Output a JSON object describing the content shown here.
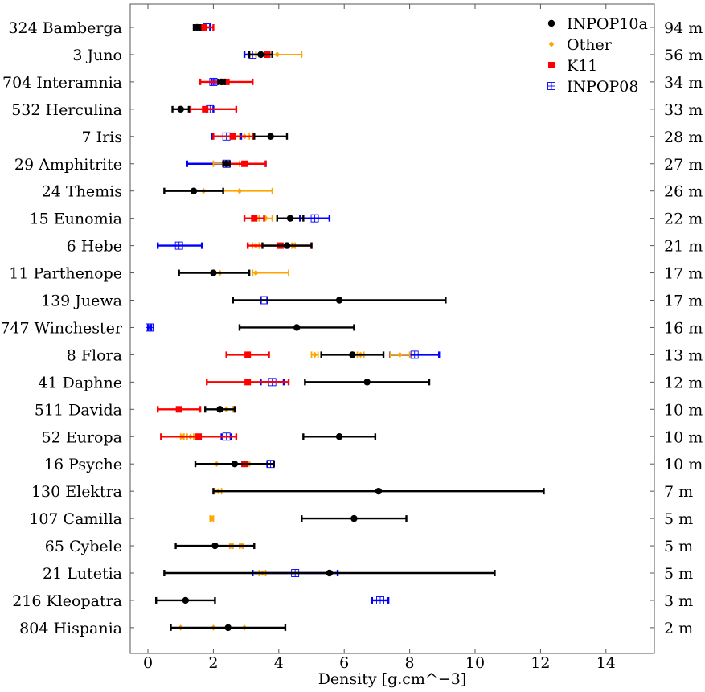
{
  "chart_data": {
    "type": "scatter",
    "xlabel": "Density [g.cm^−3]",
    "xlim": [
      -0.5,
      15.5
    ],
    "xticks": [
      0,
      2,
      4,
      6,
      8,
      10,
      12,
      14
    ],
    "legend_placement": "top-right",
    "grid": false,
    "asteroids": [
      {
        "name": "324 Bamberga",
        "size": "94  m"
      },
      {
        "name": "3 Juno",
        "size": "56  m"
      },
      {
        "name": "704 Interamnia",
        "size": "34  m"
      },
      {
        "name": "532 Herculina",
        "size": "33  m"
      },
      {
        "name": "7 Iris",
        "size": "28  m"
      },
      {
        "name": "29 Amphitrite",
        "size": "27  m"
      },
      {
        "name": "24 Themis",
        "size": "26  m"
      },
      {
        "name": "15 Eunomia",
        "size": "22  m"
      },
      {
        "name": "6 Hebe",
        "size": "21  m"
      },
      {
        "name": "11 Parthenope",
        "size": "17  m"
      },
      {
        "name": "139 Juewa",
        "size": "17  m"
      },
      {
        "name": "747 Winchester",
        "size": "16  m"
      },
      {
        "name": "8 Flora",
        "size": "13  m"
      },
      {
        "name": "41 Daphne",
        "size": "12  m"
      },
      {
        "name": "511 Davida",
        "size": "10  m"
      },
      {
        "name": "52 Europa",
        "size": "10  m"
      },
      {
        "name": "16 Psyche",
        "size": "10  m"
      },
      {
        "name": "130 Elektra",
        "size": "7  m"
      },
      {
        "name": "107 Camilla",
        "size": "5  m"
      },
      {
        "name": "65 Cybele",
        "size": "5  m"
      },
      {
        "name": "21 Lutetia",
        "size": "5  m"
      },
      {
        "name": "216 Kleopatra",
        "size": "3  m"
      },
      {
        "name": "804 Hispania",
        "size": "2  m"
      }
    ],
    "series": [
      {
        "name": "INPOP10a",
        "color": "#000000",
        "marker": "circle",
        "points": [
          {
            "row": 0,
            "x": 1.5,
            "lo": 1.4,
            "hi": 1.6
          },
          {
            "row": 1,
            "x": 3.45,
            "lo": 3.1,
            "hi": 3.8
          },
          {
            "row": 2,
            "x": 2.25,
            "lo": 2.15,
            "hi": 2.35
          },
          {
            "row": 3,
            "x": 1.0,
            "lo": 0.75,
            "hi": 1.25
          },
          {
            "row": 4,
            "x": 3.75,
            "lo": 3.25,
            "hi": 4.25
          },
          {
            "row": 5,
            "x": 2.4,
            "lo": 2.3,
            "hi": 2.5
          },
          {
            "row": 6,
            "x": 1.4,
            "lo": 0.5,
            "hi": 2.3
          },
          {
            "row": 7,
            "x": 4.35,
            "lo": 3.95,
            "hi": 4.75
          },
          {
            "row": 8,
            "x": 4.25,
            "lo": 3.5,
            "hi": 5.0
          },
          {
            "row": 9,
            "x": 2.0,
            "lo": 0.95,
            "hi": 3.1
          },
          {
            "row": 10,
            "x": 5.85,
            "lo": 2.6,
            "hi": 9.1
          },
          {
            "row": 11,
            "x": 4.55,
            "lo": 2.8,
            "hi": 6.3
          },
          {
            "row": 12,
            "x": 6.25,
            "lo": 5.3,
            "hi": 7.2
          },
          {
            "row": 13,
            "x": 6.7,
            "lo": 4.8,
            "hi": 8.6
          },
          {
            "row": 14,
            "x": 2.2,
            "lo": 1.75,
            "hi": 2.65
          },
          {
            "row": 15,
            "x": 5.85,
            "lo": 4.75,
            "hi": 6.95
          },
          {
            "row": 16,
            "x": 2.65,
            "lo": 1.45,
            "hi": 3.85
          },
          {
            "row": 17,
            "x": 7.05,
            "lo": 2.0,
            "hi": 12.1
          },
          {
            "row": 18,
            "x": 6.3,
            "lo": 4.7,
            "hi": 7.9
          },
          {
            "row": 19,
            "x": 2.05,
            "lo": 0.85,
            "hi": 3.25
          },
          {
            "row": 20,
            "x": 5.55,
            "lo": 0.5,
            "hi": 10.6
          },
          {
            "row": 21,
            "x": 1.15,
            "lo": 0.25,
            "hi": 2.05
          },
          {
            "row": 22,
            "x": 2.45,
            "lo": 0.7,
            "hi": 4.2
          }
        ]
      },
      {
        "name": "Other",
        "color": "#ffa500",
        "marker": "diamond",
        "points": [
          {
            "row": 1,
            "x": 3.95,
            "lo": 3.3,
            "hi": 4.7
          },
          {
            "row": 4,
            "x": 2.95,
            "lo": 2.8,
            "hi": 3.1
          },
          {
            "row": 5,
            "x": 2.4,
            "lo": 2.0,
            "hi": 2.8
          },
          {
            "row": 6,
            "x": 1.7,
            "lo": 1.7,
            "hi": 1.7
          },
          {
            "row": 6,
            "x": 2.8,
            "lo": 2.3,
            "hi": 3.8
          },
          {
            "row": 7,
            "x": 3.6,
            "lo": 3.4,
            "hi": 3.8
          },
          {
            "row": 8,
            "x": 3.3,
            "lo": 3.2,
            "hi": 3.4
          },
          {
            "row": 8,
            "x": 4.45,
            "lo": 4.4,
            "hi": 4.5
          },
          {
            "row": 9,
            "x": 2.2,
            "lo": 2.2,
            "hi": 2.2
          },
          {
            "row": 9,
            "x": 3.3,
            "lo": 3.2,
            "hi": 4.3
          },
          {
            "row": 12,
            "x": 5.1,
            "lo": 5.0,
            "hi": 5.2
          },
          {
            "row": 12,
            "x": 6.5,
            "lo": 6.4,
            "hi": 6.6
          },
          {
            "row": 12,
            "x": 7.7,
            "lo": 7.4,
            "hi": 8.0
          },
          {
            "row": 14,
            "x": 2.4,
            "lo": 2.2,
            "hi": 2.6
          },
          {
            "row": 15,
            "x": 1.05,
            "lo": 1.0,
            "hi": 1.1
          },
          {
            "row": 15,
            "x": 1.3,
            "lo": 1.2,
            "hi": 1.4
          },
          {
            "row": 16,
            "x": 2.1,
            "lo": 2.1,
            "hi": 2.1
          },
          {
            "row": 16,
            "x": 3.1,
            "lo": 3.1,
            "hi": 3.1
          },
          {
            "row": 17,
            "x": 2.15,
            "lo": 2.05,
            "hi": 2.25
          },
          {
            "row": 18,
            "x": 1.95,
            "lo": 1.9,
            "hi": 2.0
          },
          {
            "row": 19,
            "x": 2.55,
            "lo": 2.5,
            "hi": 2.6
          },
          {
            "row": 19,
            "x": 2.85,
            "lo": 2.8,
            "hi": 2.9
          },
          {
            "row": 20,
            "x": 3.5,
            "lo": 3.4,
            "hi": 3.6
          },
          {
            "row": 22,
            "x": 1.0,
            "lo": 1.0,
            "hi": 1.0
          },
          {
            "row": 22,
            "x": 2.0,
            "lo": 2.0,
            "hi": 2.0
          },
          {
            "row": 22,
            "x": 2.95,
            "lo": 2.95,
            "hi": 2.95
          }
        ]
      },
      {
        "name": "K11",
        "color": "#ff0000",
        "marker": "square",
        "points": [
          {
            "row": 0,
            "x": 1.7,
            "lo": 1.5,
            "hi": 2.0
          },
          {
            "row": 1,
            "x": 3.65,
            "lo": 3.6,
            "hi": 3.7
          },
          {
            "row": 2,
            "x": 2.4,
            "lo": 1.6,
            "hi": 3.2
          },
          {
            "row": 3,
            "x": 1.75,
            "lo": 1.3,
            "hi": 2.7
          },
          {
            "row": 4,
            "x": 2.6,
            "lo": 2.0,
            "hi": 3.2
          },
          {
            "row": 5,
            "x": 2.95,
            "lo": 2.3,
            "hi": 3.6
          },
          {
            "row": 7,
            "x": 3.25,
            "lo": 2.95,
            "hi": 3.55
          },
          {
            "row": 8,
            "x": 4.05,
            "lo": 3.05,
            "hi": 5.0
          },
          {
            "row": 12,
            "x": 3.05,
            "lo": 2.4,
            "hi": 3.7
          },
          {
            "row": 13,
            "x": 3.05,
            "lo": 1.8,
            "hi": 4.3
          },
          {
            "row": 14,
            "x": 0.95,
            "lo": 0.3,
            "hi": 1.6
          },
          {
            "row": 15,
            "x": 1.55,
            "lo": 0.4,
            "hi": 2.7
          },
          {
            "row": 16,
            "x": 2.95,
            "lo": 2.95,
            "hi": 2.95
          }
        ]
      },
      {
        "name": "INPOP08",
        "color": "#0000ff",
        "marker": "boxed-square",
        "points": [
          {
            "row": 0,
            "x": 1.8,
            "lo": 1.7,
            "hi": 1.9
          },
          {
            "row": 1,
            "x": 3.2,
            "lo": 2.95,
            "hi": 3.45
          },
          {
            "row": 2,
            "x": 2.0,
            "lo": 1.95,
            "hi": 2.05
          },
          {
            "row": 3,
            "x": 1.9,
            "lo": 1.8,
            "hi": 2.0
          },
          {
            "row": 4,
            "x": 2.4,
            "lo": 1.95,
            "hi": 2.85
          },
          {
            "row": 5,
            "x": 2.4,
            "lo": 1.2,
            "hi": 3.6
          },
          {
            "row": 7,
            "x": 5.1,
            "lo": 4.65,
            "hi": 5.55
          },
          {
            "row": 8,
            "x": 0.95,
            "lo": 0.3,
            "hi": 1.65
          },
          {
            "row": 10,
            "x": 3.55,
            "lo": 3.45,
            "hi": 3.65
          },
          {
            "row": 11,
            "x": 0.05,
            "lo": 0.0,
            "hi": 0.1
          },
          {
            "row": 12,
            "x": 8.15,
            "lo": 7.4,
            "hi": 8.9
          },
          {
            "row": 13,
            "x": 3.8,
            "lo": 3.45,
            "hi": 4.15
          },
          {
            "row": 15,
            "x": 2.4,
            "lo": 2.25,
            "hi": 2.55
          },
          {
            "row": 16,
            "x": 3.75,
            "lo": 3.65,
            "hi": 3.85
          },
          {
            "row": 20,
            "x": 4.5,
            "lo": 3.2,
            "hi": 5.8
          },
          {
            "row": 21,
            "x": 7.1,
            "lo": 6.85,
            "hi": 7.35
          }
        ]
      }
    ]
  }
}
